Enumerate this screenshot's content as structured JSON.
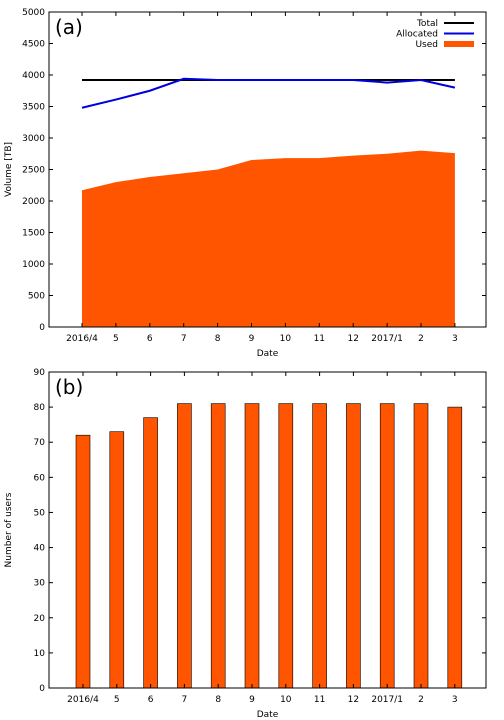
{
  "chart_data": [
    {
      "type": "area",
      "panel_label": "(a)",
      "xlabel": "Date",
      "ylabel": "Volume [TB]",
      "categories": [
        "2016/4",
        "5",
        "6",
        "7",
        "8",
        "9",
        "10",
        "11",
        "12",
        "2017/1",
        "2",
        "3"
      ],
      "ylim": [
        0,
        5000
      ],
      "yticks": [
        0,
        500,
        1000,
        1500,
        2000,
        2500,
        3000,
        3500,
        4000,
        4500,
        5000
      ],
      "legend_position": "top-right",
      "series": [
        {
          "name": "Total",
          "kind": "line",
          "color": "#000000",
          "values": [
            3920,
            3920,
            3920,
            3920,
            3920,
            3920,
            3920,
            3920,
            3920,
            3920,
            3920,
            3920
          ]
        },
        {
          "name": "Allocated",
          "kind": "line",
          "color": "#0000dd",
          "values": [
            3480,
            3610,
            3750,
            3940,
            3920,
            3920,
            3920,
            3920,
            3920,
            3880,
            3920,
            3800
          ]
        },
        {
          "name": "Used",
          "kind": "area",
          "color": "#ff5500",
          "values": [
            2170,
            2300,
            2380,
            2440,
            2500,
            2650,
            2680,
            2680,
            2720,
            2750,
            2800,
            2760
          ]
        }
      ]
    },
    {
      "type": "bar",
      "panel_label": "(b)",
      "xlabel": "Date",
      "ylabel": "Number of users",
      "categories": [
        "2016/4",
        "5",
        "6",
        "7",
        "8",
        "9",
        "10",
        "11",
        "12",
        "2017/1",
        "2",
        "3"
      ],
      "ylim": [
        0,
        90
      ],
      "yticks": [
        0,
        10,
        20,
        30,
        40,
        50,
        60,
        70,
        80,
        90
      ],
      "color": "#ff5500",
      "values": [
        72,
        73,
        77,
        81,
        81,
        81,
        81,
        81,
        81,
        81,
        81,
        80
      ]
    }
  ]
}
